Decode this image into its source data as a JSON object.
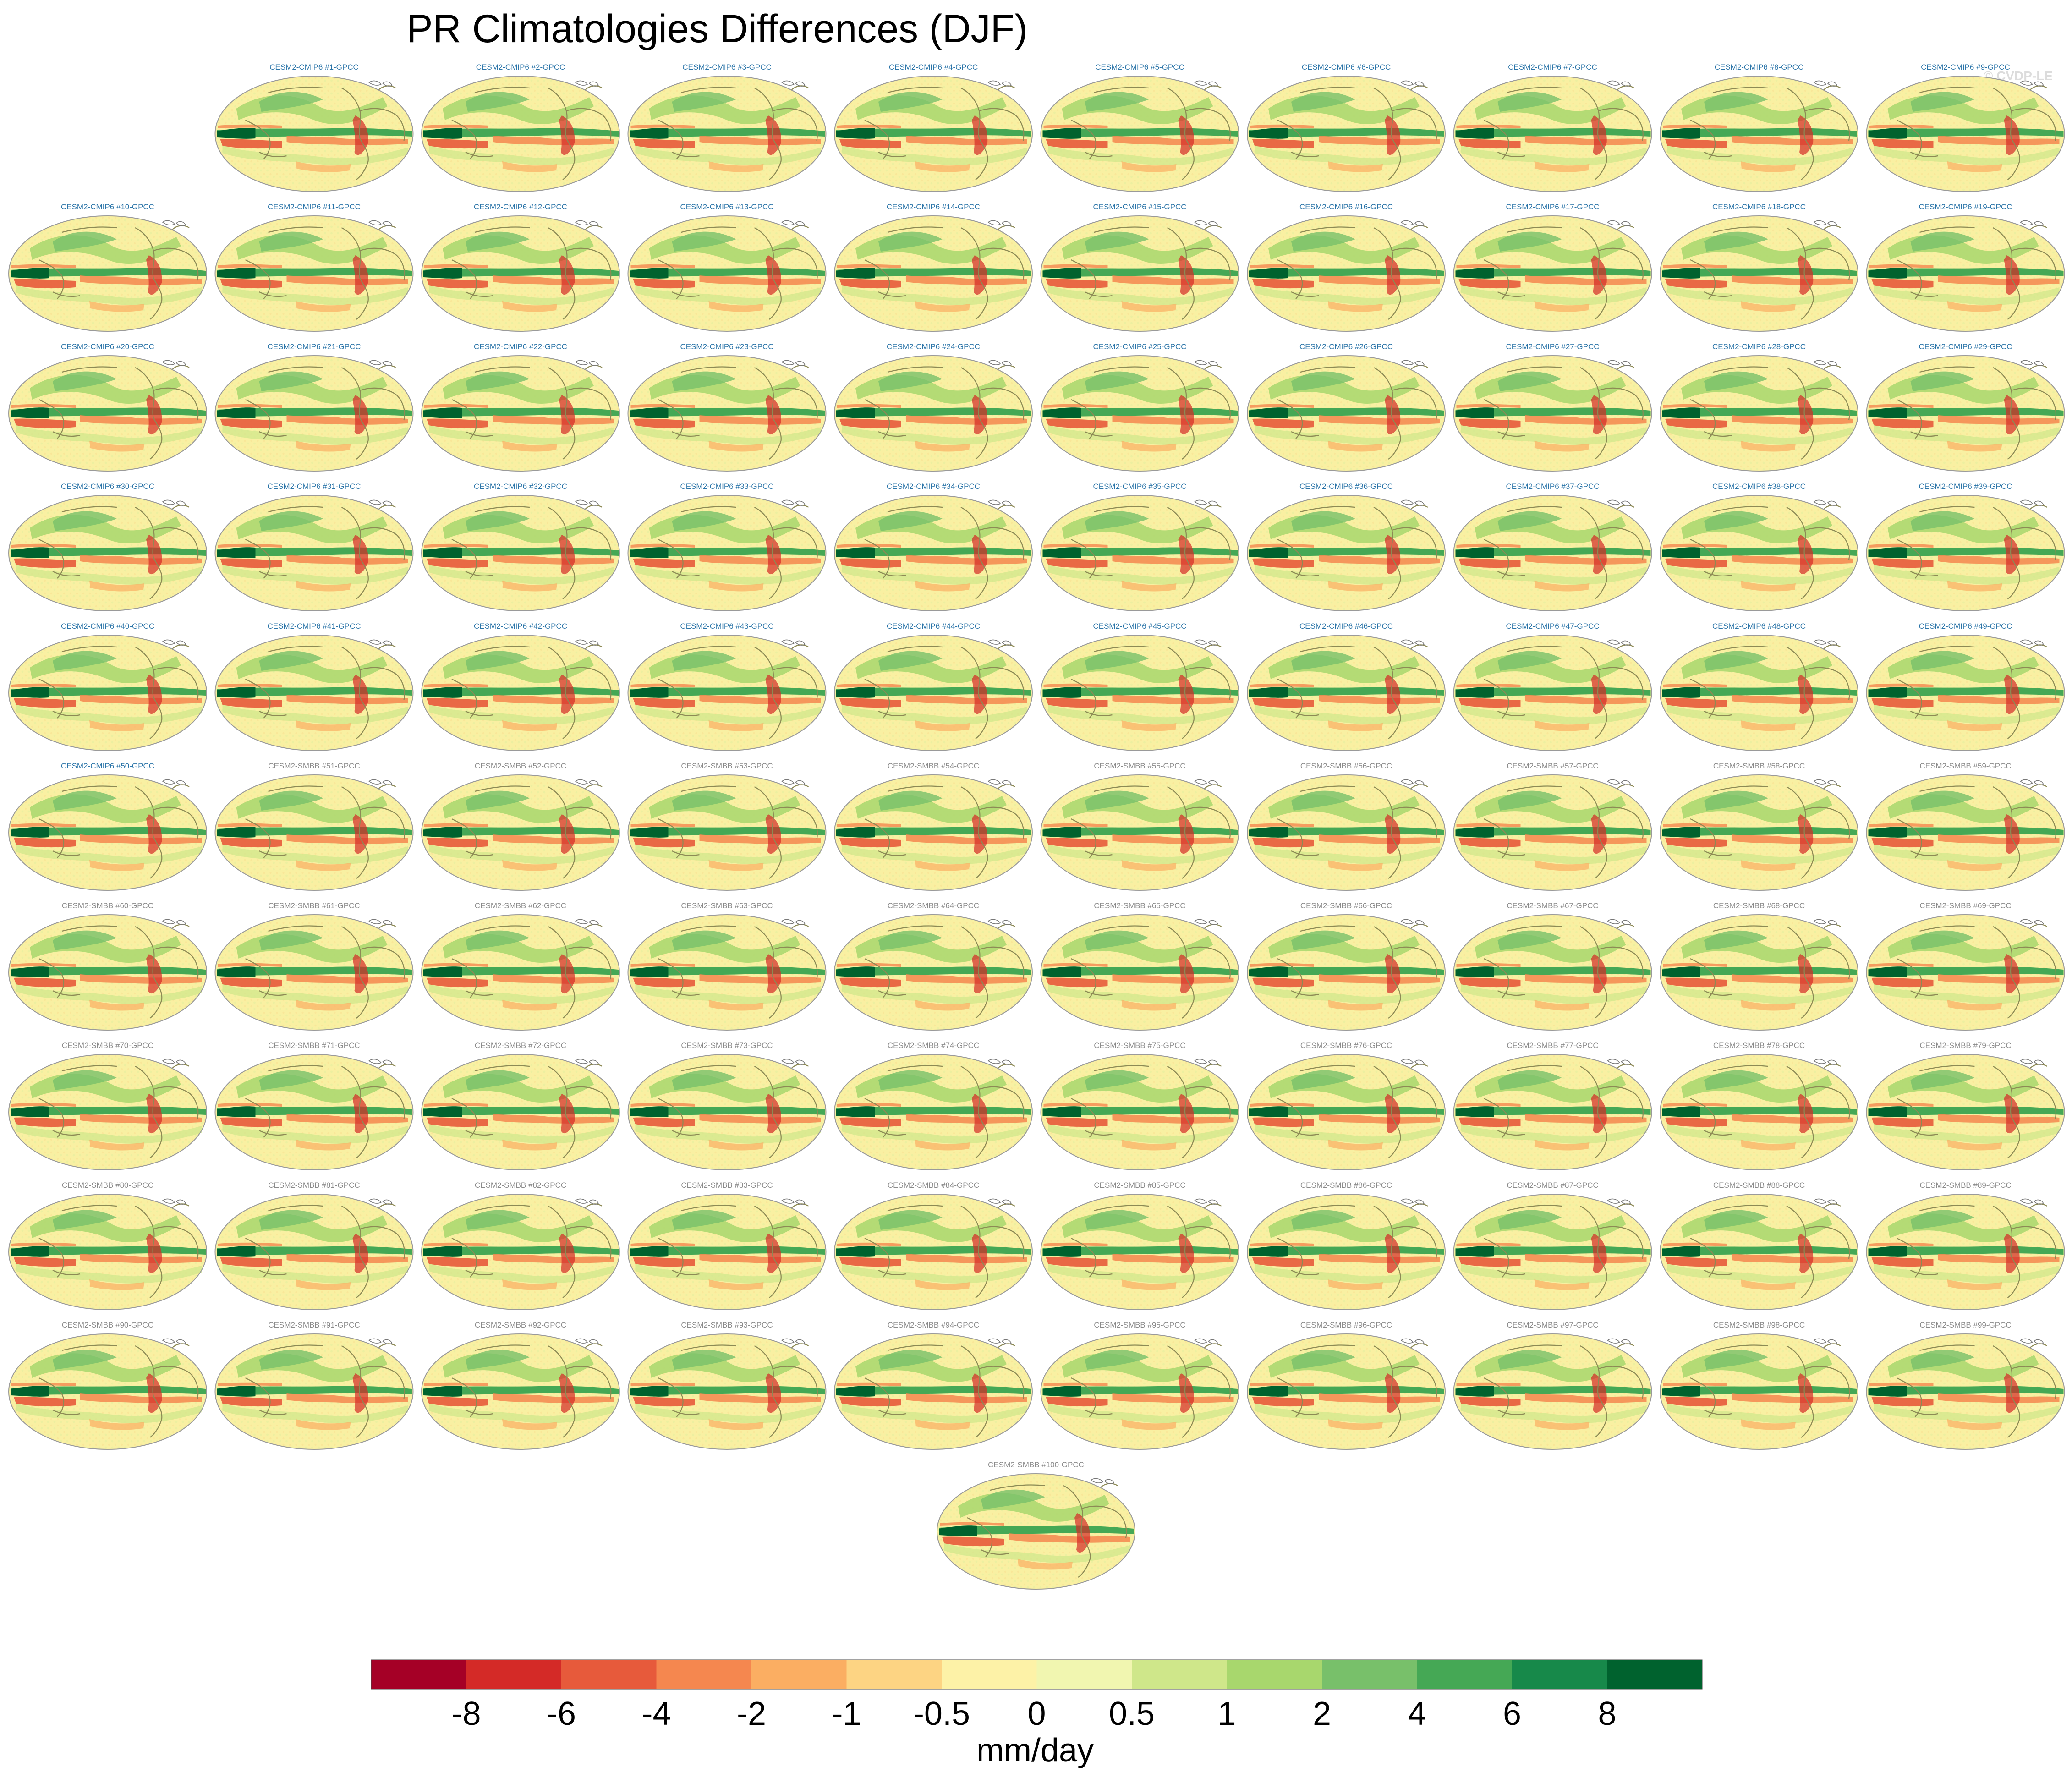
{
  "figure": {
    "title": "PR Climatologies Differences (DJF)",
    "watermark": "© CVDP-LE"
  },
  "colors": {
    "cmip6_label": "#2a74a8",
    "smbb_label": "#8a8a8a",
    "ocean_base": "#fbf3a4",
    "coast": "#8d8a55"
  },
  "chart_data": {
    "type": "heatmap",
    "title": "PR Climatologies Differences (DJF)",
    "variable": "PR",
    "season": "DJF",
    "panel_count": 100,
    "panels": [
      {
        "label": "CESM2-CMIP6 #1-GPCC",
        "group": "CMIP6"
      },
      {
        "label": "CESM2-CMIP6 #2-GPCC",
        "group": "CMIP6"
      },
      {
        "label": "CESM2-CMIP6 #3-GPCC",
        "group": "CMIP6"
      },
      {
        "label": "CESM2-CMIP6 #4-GPCC",
        "group": "CMIP6"
      },
      {
        "label": "CESM2-CMIP6 #5-GPCC",
        "group": "CMIP6"
      },
      {
        "label": "CESM2-CMIP6 #6-GPCC",
        "group": "CMIP6"
      },
      {
        "label": "CESM2-CMIP6 #7-GPCC",
        "group": "CMIP6"
      },
      {
        "label": "CESM2-CMIP6 #8-GPCC",
        "group": "CMIP6"
      },
      {
        "label": "CESM2-CMIP6 #9-GPCC",
        "group": "CMIP6"
      },
      {
        "label": "CESM2-CMIP6 #10-GPCC",
        "group": "CMIP6"
      },
      {
        "label": "CESM2-CMIP6 #11-GPCC",
        "group": "CMIP6"
      },
      {
        "label": "CESM2-CMIP6 #12-GPCC",
        "group": "CMIP6"
      },
      {
        "label": "CESM2-CMIP6 #13-GPCC",
        "group": "CMIP6"
      },
      {
        "label": "CESM2-CMIP6 #14-GPCC",
        "group": "CMIP6"
      },
      {
        "label": "CESM2-CMIP6 #15-GPCC",
        "group": "CMIP6"
      },
      {
        "label": "CESM2-CMIP6 #16-GPCC",
        "group": "CMIP6"
      },
      {
        "label": "CESM2-CMIP6 #17-GPCC",
        "group": "CMIP6"
      },
      {
        "label": "CESM2-CMIP6 #18-GPCC",
        "group": "CMIP6"
      },
      {
        "label": "CESM2-CMIP6 #19-GPCC",
        "group": "CMIP6"
      },
      {
        "label": "CESM2-CMIP6 #20-GPCC",
        "group": "CMIP6"
      },
      {
        "label": "CESM2-CMIP6 #21-GPCC",
        "group": "CMIP6"
      },
      {
        "label": "CESM2-CMIP6 #22-GPCC",
        "group": "CMIP6"
      },
      {
        "label": "CESM2-CMIP6 #23-GPCC",
        "group": "CMIP6"
      },
      {
        "label": "CESM2-CMIP6 #24-GPCC",
        "group": "CMIP6"
      },
      {
        "label": "CESM2-CMIP6 #25-GPCC",
        "group": "CMIP6"
      },
      {
        "label": "CESM2-CMIP6 #26-GPCC",
        "group": "CMIP6"
      },
      {
        "label": "CESM2-CMIP6 #27-GPCC",
        "group": "CMIP6"
      },
      {
        "label": "CESM2-CMIP6 #28-GPCC",
        "group": "CMIP6"
      },
      {
        "label": "CESM2-CMIP6 #29-GPCC",
        "group": "CMIP6"
      },
      {
        "label": "CESM2-CMIP6 #30-GPCC",
        "group": "CMIP6"
      },
      {
        "label": "CESM2-CMIP6 #31-GPCC",
        "group": "CMIP6"
      },
      {
        "label": "CESM2-CMIP6 #32-GPCC",
        "group": "CMIP6"
      },
      {
        "label": "CESM2-CMIP6 #33-GPCC",
        "group": "CMIP6"
      },
      {
        "label": "CESM2-CMIP6 #34-GPCC",
        "group": "CMIP6"
      },
      {
        "label": "CESM2-CMIP6 #35-GPCC",
        "group": "CMIP6"
      },
      {
        "label": "CESM2-CMIP6 #36-GPCC",
        "group": "CMIP6"
      },
      {
        "label": "CESM2-CMIP6 #37-GPCC",
        "group": "CMIP6"
      },
      {
        "label": "CESM2-CMIP6 #38-GPCC",
        "group": "CMIP6"
      },
      {
        "label": "CESM2-CMIP6 #39-GPCC",
        "group": "CMIP6"
      },
      {
        "label": "CESM2-CMIP6 #40-GPCC",
        "group": "CMIP6"
      },
      {
        "label": "CESM2-CMIP6 #41-GPCC",
        "group": "CMIP6"
      },
      {
        "label": "CESM2-CMIP6 #42-GPCC",
        "group": "CMIP6"
      },
      {
        "label": "CESM2-CMIP6 #43-GPCC",
        "group": "CMIP6"
      },
      {
        "label": "CESM2-CMIP6 #44-GPCC",
        "group": "CMIP6"
      },
      {
        "label": "CESM2-CMIP6 #45-GPCC",
        "group": "CMIP6"
      },
      {
        "label": "CESM2-CMIP6 #46-GPCC",
        "group": "CMIP6"
      },
      {
        "label": "CESM2-CMIP6 #47-GPCC",
        "group": "CMIP6"
      },
      {
        "label": "CESM2-CMIP6 #48-GPCC",
        "group": "CMIP6"
      },
      {
        "label": "CESM2-CMIP6 #49-GPCC",
        "group": "CMIP6"
      },
      {
        "label": "CESM2-CMIP6 #50-GPCC",
        "group": "CMIP6"
      },
      {
        "label": "CESM2-SMBB #51-GPCC",
        "group": "SMBB"
      },
      {
        "label": "CESM2-SMBB #52-GPCC",
        "group": "SMBB"
      },
      {
        "label": "CESM2-SMBB #53-GPCC",
        "group": "SMBB"
      },
      {
        "label": "CESM2-SMBB #54-GPCC",
        "group": "SMBB"
      },
      {
        "label": "CESM2-SMBB #55-GPCC",
        "group": "SMBB"
      },
      {
        "label": "CESM2-SMBB #56-GPCC",
        "group": "SMBB"
      },
      {
        "label": "CESM2-SMBB #57-GPCC",
        "group": "SMBB"
      },
      {
        "label": "CESM2-SMBB #58-GPCC",
        "group": "SMBB"
      },
      {
        "label": "CESM2-SMBB #59-GPCC",
        "group": "SMBB"
      },
      {
        "label": "CESM2-SMBB #60-GPCC",
        "group": "SMBB"
      },
      {
        "label": "CESM2-SMBB #61-GPCC",
        "group": "SMBB"
      },
      {
        "label": "CESM2-SMBB #62-GPCC",
        "group": "SMBB"
      },
      {
        "label": "CESM2-SMBB #63-GPCC",
        "group": "SMBB"
      },
      {
        "label": "CESM2-SMBB #64-GPCC",
        "group": "SMBB"
      },
      {
        "label": "CESM2-SMBB #65-GPCC",
        "group": "SMBB"
      },
      {
        "label": "CESM2-SMBB #66-GPCC",
        "group": "SMBB"
      },
      {
        "label": "CESM2-SMBB #67-GPCC",
        "group": "SMBB"
      },
      {
        "label": "CESM2-SMBB #68-GPCC",
        "group": "SMBB"
      },
      {
        "label": "CESM2-SMBB #69-GPCC",
        "group": "SMBB"
      },
      {
        "label": "CESM2-SMBB #70-GPCC",
        "group": "SMBB"
      },
      {
        "label": "CESM2-SMBB #71-GPCC",
        "group": "SMBB"
      },
      {
        "label": "CESM2-SMBB #72-GPCC",
        "group": "SMBB"
      },
      {
        "label": "CESM2-SMBB #73-GPCC",
        "group": "SMBB"
      },
      {
        "label": "CESM2-SMBB #74-GPCC",
        "group": "SMBB"
      },
      {
        "label": "CESM2-SMBB #75-GPCC",
        "group": "SMBB"
      },
      {
        "label": "CESM2-SMBB #76-GPCC",
        "group": "SMBB"
      },
      {
        "label": "CESM2-SMBB #77-GPCC",
        "group": "SMBB"
      },
      {
        "label": "CESM2-SMBB #78-GPCC",
        "group": "SMBB"
      },
      {
        "label": "CESM2-SMBB #79-GPCC",
        "group": "SMBB"
      },
      {
        "label": "CESM2-SMBB #80-GPCC",
        "group": "SMBB"
      },
      {
        "label": "CESM2-SMBB #81-GPCC",
        "group": "SMBB"
      },
      {
        "label": "CESM2-SMBB #82-GPCC",
        "group": "SMBB"
      },
      {
        "label": "CESM2-SMBB #83-GPCC",
        "group": "SMBB"
      },
      {
        "label": "CESM2-SMBB #84-GPCC",
        "group": "SMBB"
      },
      {
        "label": "CESM2-SMBB #85-GPCC",
        "group": "SMBB"
      },
      {
        "label": "CESM2-SMBB #86-GPCC",
        "group": "SMBB"
      },
      {
        "label": "CESM2-SMBB #87-GPCC",
        "group": "SMBB"
      },
      {
        "label": "CESM2-SMBB #88-GPCC",
        "group": "SMBB"
      },
      {
        "label": "CESM2-SMBB #89-GPCC",
        "group": "SMBB"
      },
      {
        "label": "CESM2-SMBB #90-GPCC",
        "group": "SMBB"
      },
      {
        "label": "CESM2-SMBB #91-GPCC",
        "group": "SMBB"
      },
      {
        "label": "CESM2-SMBB #92-GPCC",
        "group": "SMBB"
      },
      {
        "label": "CESM2-SMBB #93-GPCC",
        "group": "SMBB"
      },
      {
        "label": "CESM2-SMBB #94-GPCC",
        "group": "SMBB"
      },
      {
        "label": "CESM2-SMBB #95-GPCC",
        "group": "SMBB"
      },
      {
        "label": "CESM2-SMBB #96-GPCC",
        "group": "SMBB"
      },
      {
        "label": "CESM2-SMBB #97-GPCC",
        "group": "SMBB"
      },
      {
        "label": "CESM2-SMBB #98-GPCC",
        "group": "SMBB"
      },
      {
        "label": "CESM2-SMBB #99-GPCC",
        "group": "SMBB"
      },
      {
        "label": "CESM2-SMBB #100-GPCC",
        "group": "SMBB"
      }
    ],
    "colorbar": {
      "label": "mm/day",
      "tick_labels": [
        "-8",
        "-6",
        "-4",
        "-2",
        "-1",
        "-0.5",
        "0",
        "0.5",
        "1",
        "2",
        "4",
        "6",
        "8"
      ],
      "boundaries": [
        -8,
        -6,
        -4,
        -2,
        -1,
        -0.5,
        0,
        0.5,
        1,
        2,
        4,
        6,
        8
      ],
      "colors": [
        "#a50026",
        "#d42a27",
        "#e75a3b",
        "#f5874f",
        "#fbae62",
        "#fdd483",
        "#fdf2a7",
        "#f1f6b0",
        "#cfe78a",
        "#a8d76d",
        "#78c06a",
        "#45a855",
        "#17894a",
        "#00622e"
      ]
    },
    "annotations": [
      "© CVDP-LE"
    ]
  }
}
